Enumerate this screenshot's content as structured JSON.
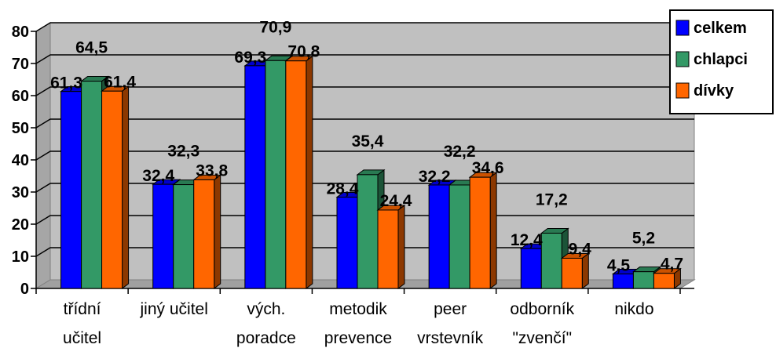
{
  "chart_data": {
    "type": "bar",
    "categories": [
      [
        "třídní",
        "učitel"
      ],
      [
        "jiný učitel"
      ],
      [
        "vých.",
        "poradce"
      ],
      [
        "metodik",
        "prevence"
      ],
      [
        "peer",
        "vrstevník"
      ],
      [
        "odborník",
        "\"zvenčí\""
      ],
      [
        "nikdo"
      ]
    ],
    "series": [
      {
        "name": "celkem",
        "color": "#0000ff",
        "values": [
          61.3,
          32.4,
          69.3,
          28.4,
          32.2,
          12.4,
          4.5
        ],
        "labels": [
          "61,3",
          "32,4",
          "69,3",
          "28,4",
          "32,2",
          "12,4",
          "4,5"
        ]
      },
      {
        "name": "chlapci",
        "color": "#339966",
        "values": [
          64.5,
          32.3,
          70.9,
          35.4,
          32.2,
          17.2,
          5.2
        ],
        "labels": [
          "64,5",
          "32,3",
          "70,9",
          "35,4",
          "32,2",
          "17,2",
          "5,2"
        ]
      },
      {
        "name": "dívky",
        "color": "#ff6600",
        "values": [
          61.4,
          33.8,
          70.8,
          24.4,
          34.6,
          9.4,
          4.7
        ],
        "labels": [
          "61,4",
          "33,8",
          "70,8",
          "24,4",
          "34,6",
          "9,4",
          "4,7"
        ]
      }
    ],
    "yticks": [
      "0",
      "10",
      "20",
      "30",
      "40",
      "50",
      "60",
      "70",
      "80"
    ],
    "ylim": [
      0,
      80
    ],
    "grid": true,
    "legend_position": "top-right",
    "plot_background": "#c0c0c0"
  }
}
